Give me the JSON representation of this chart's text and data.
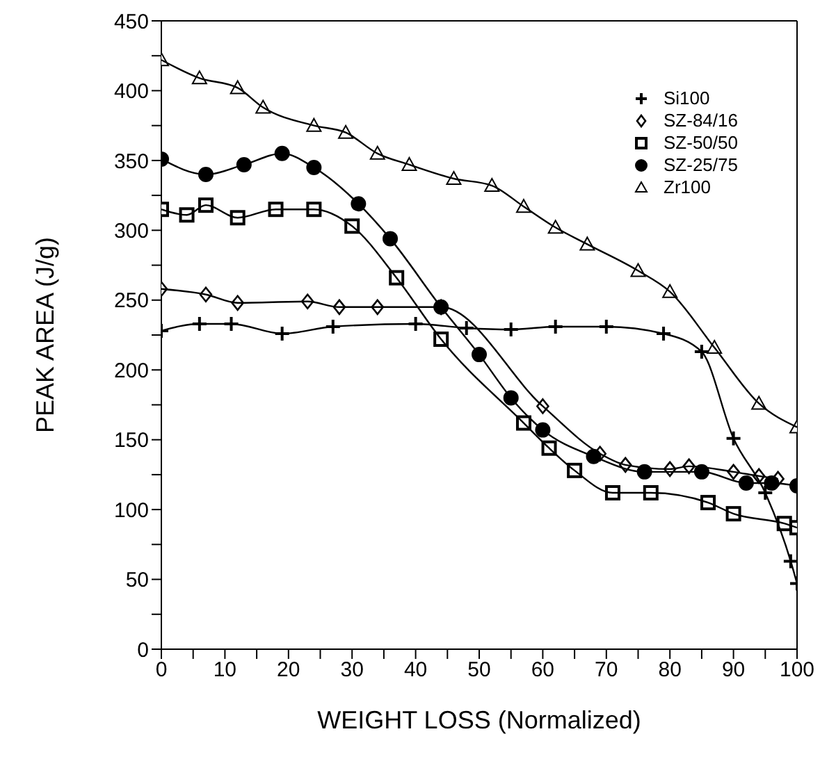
{
  "chart_data": {
    "type": "line",
    "xlabel": "WEIGHT LOSS (Normalized)",
    "ylabel": "PEAK AREA (J/g)",
    "xlim": [
      0,
      100
    ],
    "xticks": [
      0,
      {
        "value": 5,
        "label": null
      },
      10,
      {
        "value": 15,
        "label": null
      },
      20,
      {
        "value": 25,
        "label": null
      },
      30,
      {
        "value": 35,
        "label": null
      },
      40,
      {
        "value": 45,
        "label": null
      },
      50,
      {
        "value": 55,
        "label": null
      },
      60,
      {
        "value": 65,
        "label": null
      },
      70,
      {
        "value": 75,
        "label": null
      },
      80,
      {
        "value": 85,
        "label": null
      },
      90,
      {
        "value": 95,
        "label": null
      },
      100
    ],
    "ylim": [
      0,
      450
    ],
    "yticks": [
      0,
      {
        "value": 25,
        "label": null
      },
      50,
      {
        "value": 75,
        "label": null
      },
      100,
      {
        "value": 125,
        "label": null
      },
      150,
      {
        "value": 175,
        "label": null
      },
      200,
      {
        "value": 225,
        "label": null
      },
      250,
      {
        "value": 275,
        "label": null
      },
      300,
      {
        "value": 325,
        "label": null
      },
      350,
      {
        "value": 375,
        "label": null
      },
      400,
      {
        "value": 425,
        "label": null
      },
      450
    ],
    "grid": false,
    "legend": "top right",
    "line_style": "solid",
    "series": [
      {
        "name": "Si100",
        "color": "#000000",
        "marker": "cross",
        "x": [
          0,
          6,
          11,
          19,
          27,
          40,
          48,
          55,
          62,
          70,
          79,
          85,
          90,
          95,
          99,
          100
        ],
        "values": [
          228,
          233,
          233,
          226,
          231,
          233,
          230,
          229,
          231,
          231,
          226,
          213,
          151,
          112,
          63,
          47
        ]
      },
      {
        "name": "SZ-84/16",
        "color": "#000000",
        "marker": "diamond",
        "x": [
          0,
          7,
          12,
          23,
          28,
          34,
          44,
          60,
          69,
          73,
          80,
          83,
          90,
          94,
          97
        ],
        "values": [
          258,
          254,
          248,
          249,
          245,
          245,
          245,
          174,
          140,
          132,
          129,
          131,
          127,
          124,
          122
        ]
      },
      {
        "name": "SZ-50/50",
        "color": "#000000",
        "marker": "square",
        "x": [
          0,
          4,
          7,
          12,
          18,
          24,
          30,
          37,
          44,
          57,
          61,
          65,
          71,
          77,
          86,
          90,
          98,
          100
        ],
        "values": [
          315,
          311,
          318,
          309,
          315,
          315,
          303,
          266,
          222,
          162,
          144,
          128,
          112,
          112,
          105,
          97,
          90,
          87
        ]
      },
      {
        "name": "SZ-25/75",
        "color": "#000000",
        "marker": "circle",
        "x": [
          0,
          7,
          13,
          19,
          24,
          31,
          36,
          44,
          50,
          55,
          60,
          68,
          76,
          85,
          92,
          96,
          100
        ],
        "values": [
          351,
          340,
          347,
          355,
          345,
          319,
          294,
          245,
          211,
          180,
          157,
          138,
          127,
          127,
          119,
          119,
          117
        ]
      },
      {
        "name": "Zr100",
        "color": "#000000",
        "marker": "triangle",
        "x": [
          0,
          6,
          12,
          16,
          24,
          29,
          34,
          39,
          46,
          52,
          57,
          62,
          67,
          75,
          80,
          87,
          94,
          100
        ],
        "values": [
          422,
          409,
          402,
          388,
          375,
          370,
          355,
          347,
          337,
          332,
          317,
          302,
          290,
          271,
          256,
          216,
          176,
          159
        ]
      }
    ]
  }
}
